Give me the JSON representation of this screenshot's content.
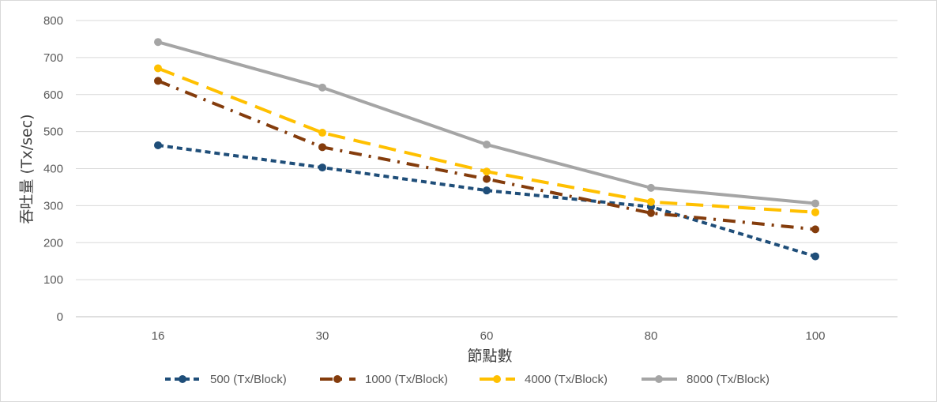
{
  "chart_data": {
    "type": "line",
    "title": "",
    "xlabel": "節點數",
    "ylabel": "吞吐量 (Tx/sec)",
    "categories": [
      "16",
      "30",
      "60",
      "80",
      "100"
    ],
    "ylim": [
      0,
      800
    ],
    "yticks": [
      0,
      100,
      200,
      300,
      400,
      500,
      600,
      700,
      800
    ],
    "grid": true,
    "legend_position": "bottom",
    "series": [
      {
        "name": "500 (Tx/Block)",
        "values": [
          463,
          403,
          341,
          297,
          163
        ],
        "color": "#1f4e79",
        "dash": "short-dash"
      },
      {
        "name": "1000 (Tx/Block)",
        "values": [
          637,
          458,
          372,
          280,
          236
        ],
        "color": "#843c0c",
        "dash": "dash-dot"
      },
      {
        "name": "4000 (Tx/Block)",
        "values": [
          671,
          497,
          392,
          310,
          282
        ],
        "color": "#ffc000",
        "dash": "long-dash"
      },
      {
        "name": "8000 (Tx/Block)",
        "values": [
          742,
          619,
          465,
          348,
          306
        ],
        "color": "#a5a5a5",
        "dash": "solid"
      }
    ]
  }
}
